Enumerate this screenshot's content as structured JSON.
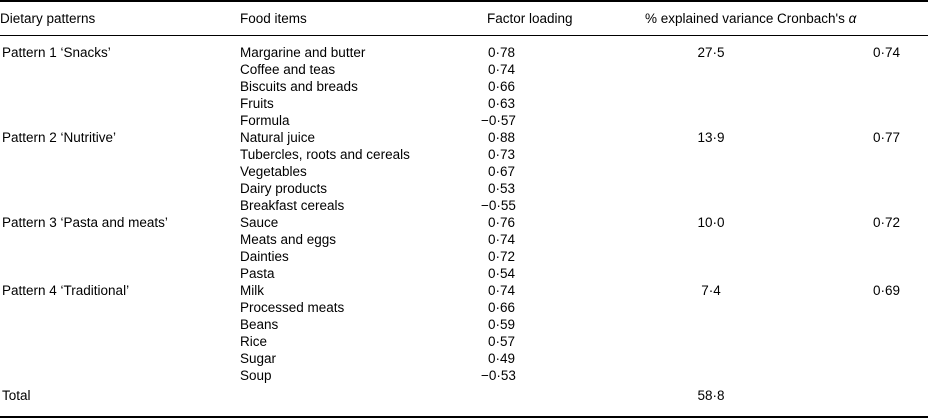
{
  "table": {
    "columns": [
      {
        "label": "Dietary patterns"
      },
      {
        "label": "Food items"
      },
      {
        "label": "Factor loading"
      },
      {
        "label": "% explained variance"
      },
      {
        "label": "Cronbach's ",
        "symbol": "α"
      }
    ],
    "groups": [
      {
        "pattern": "Pattern 1 ‘Snacks’",
        "variance": "27·5",
        "alpha": "0·74",
        "items": [
          {
            "food": "Margarine and butter",
            "loading": "0·78"
          },
          {
            "food": "Coffee and teas",
            "loading": "0·74"
          },
          {
            "food": "Biscuits and breads",
            "loading": "0·66"
          },
          {
            "food": "Fruits",
            "loading": "0·63"
          },
          {
            "food": "Formula",
            "loading": "−0·57"
          }
        ]
      },
      {
        "pattern": "Pattern 2 ‘Nutritive’",
        "variance": "13·9",
        "alpha": "0·77",
        "items": [
          {
            "food": "Natural juice",
            "loading": "0·88"
          },
          {
            "food": "Tubercles, roots and cereals",
            "loading": "0·73"
          },
          {
            "food": "Vegetables",
            "loading": "0·67"
          },
          {
            "food": "Dairy products",
            "loading": "0·53"
          },
          {
            "food": "Breakfast cereals",
            "loading": "−0·55"
          }
        ]
      },
      {
        "pattern": "Pattern 3 ‘Pasta and meats’",
        "variance": "10·0",
        "alpha": "0·72",
        "items": [
          {
            "food": "Sauce",
            "loading": "0·76"
          },
          {
            "food": "Meats and eggs",
            "loading": "0·74"
          },
          {
            "food": "Dainties",
            "loading": "0·72"
          },
          {
            "food": "Pasta",
            "loading": "0·54"
          }
        ]
      },
      {
        "pattern": "Pattern 4 ‘Traditional’",
        "variance": "7·4",
        "alpha": "0·69",
        "items": [
          {
            "food": "Milk",
            "loading": "0·74"
          },
          {
            "food": "Processed meats",
            "loading": "0·66"
          },
          {
            "food": "Beans",
            "loading": "0·59"
          },
          {
            "food": "Rice",
            "loading": "0·57"
          },
          {
            "food": "Sugar",
            "loading": "0·49"
          },
          {
            "food": "Soup",
            "loading": "−0·53"
          }
        ]
      }
    ],
    "total": {
      "label": "Total",
      "variance": "58·8"
    }
  }
}
